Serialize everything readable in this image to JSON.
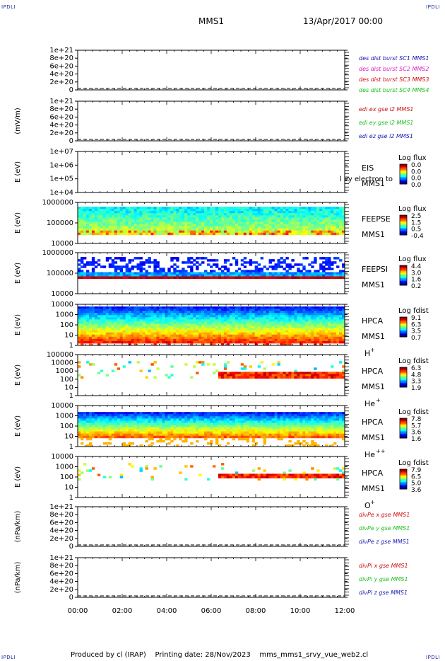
{
  "corner_label": "IPDLI",
  "header": {
    "spacecraft": "MMS1",
    "datetime": "13/Apr/2017 00:00"
  },
  "footer": {
    "produced_by": "Produced by cl (IRAP)",
    "printing_date": "Printing date: 28/Nov/2023",
    "script": "mms_mms1_srvy_vue_web2.cl"
  },
  "chart_data": [
    {
      "type": "line",
      "panel": "dist-burst",
      "ylabel": "",
      "yticks": [
        "1e+21",
        "8e+20",
        "6e+20",
        "4e+20",
        "2e+20",
        "0"
      ],
      "legend": [
        {
          "text": "des dist burst SC1 MMS1",
          "color": "#1a1ab4"
        },
        {
          "text": "des dist burst SC2 MMS2",
          "color": "#e020c8"
        },
        {
          "text": "des dist burst SC3 MMS3",
          "color": "#d01010"
        },
        {
          "text": "des dist burst SC4 MMS4",
          "color": "#20c020"
        }
      ]
    },
    {
      "type": "line",
      "panel": "edi-e",
      "ylabel": "(mV/m)",
      "yticks": [
        "1e+21",
        "8e+20",
        "6e+20",
        "4e+20",
        "2e+20",
        "0"
      ],
      "legend": [
        {
          "text": "edi ex gse l2 MMS1",
          "color": "#d01010"
        },
        {
          "text": "edi ey gse l2 MMS1",
          "color": "#20c020"
        },
        {
          "text": "edi ez gse l2 MMS1",
          "color": "#1a1ab4"
        }
      ]
    },
    {
      "type": "heatmap",
      "panel": "eis",
      "ylabel": "E (eV)",
      "yticks": [
        "1e+07",
        "1e+06",
        "1e+05",
        "1e+04"
      ],
      "instrument": "EIS",
      "sc": "MMS1",
      "overlay": "l  vy electron to",
      "cbar_title": "Log flux",
      "cbar_ticks": [
        "0.0",
        "0.0",
        "0.0",
        "0.0"
      ]
    },
    {
      "type": "heatmap",
      "panel": "feepse",
      "ylabel": "E (eV)",
      "yticks": [
        "1000000",
        "100000",
        "10000"
      ],
      "instrument": "FEEPSE",
      "sc": "MMS1",
      "cbar_title": "Log flux",
      "cbar_ticks": [
        "2.5",
        "1.5",
        "0.5",
        "-0.4"
      ]
    },
    {
      "type": "heatmap",
      "panel": "feepsi",
      "ylabel": "E (eV)",
      "yticks": [
        "1000000",
        "100000",
        "10000"
      ],
      "instrument": "FEEPSI",
      "sc": "MMS1",
      "cbar_title": "Log flux",
      "cbar_ticks": [
        "4.4",
        "3.0",
        "1.6",
        "0.2"
      ]
    },
    {
      "type": "heatmap",
      "panel": "hpca-h",
      "ylabel": "E (eV)",
      "yticks": [
        "10000",
        "1000",
        "100",
        "10",
        "1"
      ],
      "instrument": "HPCA",
      "sc": "MMS1",
      "species": "H",
      "charge": "+",
      "cbar_title": "Log fdist",
      "cbar_ticks": [
        "9.1",
        "6.3",
        "3.5",
        "0.7"
      ]
    },
    {
      "type": "heatmap",
      "panel": "hpca-he1",
      "ylabel": "E (eV)",
      "yticks": [
        "100000",
        "10000",
        "1000",
        "100",
        "10",
        "1"
      ],
      "instrument": "HPCA",
      "sc": "MMS1",
      "species": "He",
      "charge": "+",
      "cbar_title": "Log fdist",
      "cbar_ticks": [
        "6.3",
        "4.8",
        "3.3",
        "1.9"
      ]
    },
    {
      "type": "heatmap",
      "panel": "hpca-he2",
      "ylabel": "E (eV)",
      "yticks": [
        "10000",
        "1000",
        "100",
        "10",
        "1"
      ],
      "instrument": "HPCA",
      "sc": "MMS1",
      "species": "He",
      "charge": "++",
      "cbar_title": "Log fdist",
      "cbar_ticks": [
        "7.8",
        "5.7",
        "3.6",
        "1.6"
      ]
    },
    {
      "type": "heatmap",
      "panel": "hpca-o",
      "ylabel": "E (eV)",
      "yticks": [
        "10000",
        "1000",
        "100",
        "10",
        "1"
      ],
      "instrument": "HPCA",
      "sc": "MMS1",
      "species": "O",
      "charge": "+",
      "cbar_title": "Log fdist",
      "cbar_ticks": [
        "7.9",
        "6.5",
        "5.0",
        "3.6"
      ]
    },
    {
      "type": "line",
      "panel": "divpe",
      "ylabel": "(nPa/km)",
      "yticks": [
        "1e+21",
        "8e+20",
        "6e+20",
        "4e+20",
        "2e+20",
        "0"
      ],
      "legend": [
        {
          "text": "divPe x gse MMS1",
          "color": "#d01010"
        },
        {
          "text": "divPe y gse MMS1",
          "color": "#20c020"
        },
        {
          "text": "divPe z gse MMS1",
          "color": "#1a1ab4"
        }
      ]
    },
    {
      "type": "line",
      "panel": "divpi",
      "ylabel": "(nPa/km)",
      "yticks": [
        "1e+21",
        "8e+20",
        "6e+20",
        "4e+20",
        "2e+20",
        "0"
      ],
      "legend": [
        {
          "text": "divPi x gse MMS1",
          "color": "#d01010"
        },
        {
          "text": "divPi y gse MMS1",
          "color": "#20c020"
        },
        {
          "text": "divPi z gse MMS1",
          "color": "#1a1ab4"
        }
      ]
    }
  ],
  "xticks": [
    "00:00",
    "02:00",
    "04:00",
    "06:00",
    "08:00",
    "10:00",
    "12:00"
  ]
}
